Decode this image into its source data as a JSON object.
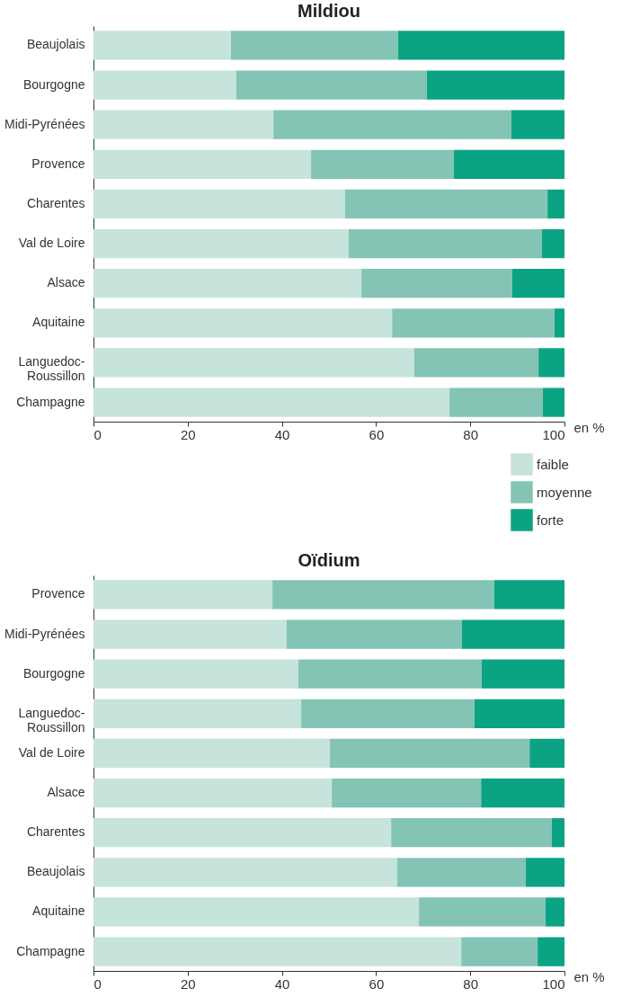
{
  "chart_data": [
    {
      "type": "bar",
      "title": "Mildiou",
      "orientation": "horizontal",
      "stacked": true,
      "xlabel": "en %",
      "legend": "bottom right",
      "categories": [
        "Beaujolais",
        "Bourgogne",
        "Midi-Pyrénées",
        "Provence",
        "Charentes",
        "Val de Loire",
        "Alsace",
        "Aquitaine",
        "Languedoc-Roussillon",
        "Champagne"
      ],
      "series": [
        {
          "name": "faible",
          "color": "#c6e3dc",
          "values": [
            29.2,
            30.3,
            38.2,
            46.2,
            53.4,
            54.2,
            56.9,
            63.4,
            68.1,
            75.6
          ]
        },
        {
          "name": "moyenne",
          "color": "#84c4b5",
          "values": [
            35.5,
            40.5,
            50.5,
            30.3,
            43.0,
            41.0,
            32.0,
            34.5,
            26.4,
            19.8
          ]
        },
        {
          "name": "forte",
          "color": "#0ba383",
          "values": [
            35.3,
            29.2,
            11.3,
            23.5,
            3.6,
            4.8,
            11.1,
            2.1,
            5.5,
            4.6
          ]
        }
      ],
      "xlim": [
        0,
        100
      ],
      "xticks": [
        0,
        20,
        40,
        60,
        80,
        100
      ],
      "grid": false
    },
    {
      "type": "bar",
      "title": "Oïdium",
      "orientation": "horizontal",
      "stacked": true,
      "xlabel": "en %",
      "legend": false,
      "categories": [
        "Provence",
        "Midi-Pyrénées",
        "Bourgogne",
        "Languedoc-Roussillon",
        "Val de Loire",
        "Alsace",
        "Charentes",
        "Beaujolais",
        "Aquitaine",
        "Champagne"
      ],
      "series": [
        {
          "color": "#c6e3dc",
          "values": [
            38.0,
            41.0,
            43.5,
            44.1,
            50.2,
            50.6,
            63.2,
            64.5,
            69.1,
            78.1
          ]
        },
        {
          "color": "#84c4b5",
          "values": [
            47.1,
            37.2,
            38.9,
            36.8,
            42.4,
            31.7,
            34.1,
            27.3,
            26.9,
            16.2
          ]
        },
        {
          "color": "#0ba383",
          "values": [
            14.9,
            21.8,
            17.6,
            19.1,
            7.4,
            17.7,
            2.7,
            8.2,
            4.0,
            5.7
          ]
        }
      ],
      "xlim": [
        0,
        100
      ],
      "xticks": [
        0,
        20,
        40,
        60,
        80,
        100
      ],
      "grid": false
    }
  ]
}
